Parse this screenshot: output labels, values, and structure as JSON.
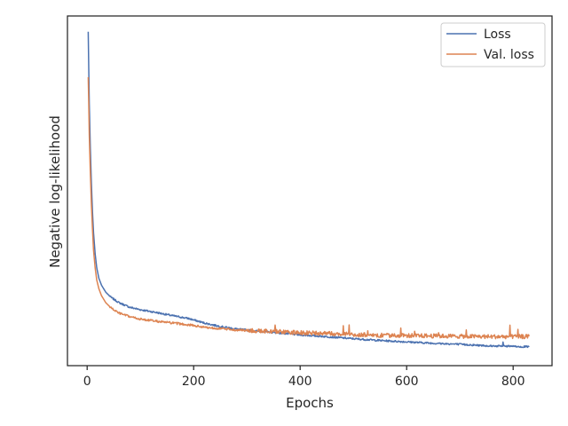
{
  "chart_data": {
    "type": "line",
    "xlabel": "Epochs",
    "ylabel": "Negative log-likelihood",
    "xlim": [
      -37,
      873
    ],
    "ylim": [
      0,
      1
    ],
    "xticks": [
      0,
      200,
      400,
      600,
      800
    ],
    "yticks_shown": false,
    "grid": false,
    "legend": "top-right",
    "series": [
      {
        "name": "Loss",
        "color": "#4c72b0",
        "points": [
          [
            2,
            0.955
          ],
          [
            3,
            0.85
          ],
          [
            4,
            0.75
          ],
          [
            6,
            0.62
          ],
          [
            8,
            0.52
          ],
          [
            10,
            0.44
          ],
          [
            12,
            0.38
          ],
          [
            15,
            0.32
          ],
          [
            18,
            0.28
          ],
          [
            22,
            0.25
          ],
          [
            27,
            0.23
          ],
          [
            35,
            0.21
          ],
          [
            45,
            0.195
          ],
          [
            60,
            0.18
          ],
          [
            80,
            0.167
          ],
          [
            100,
            0.16
          ],
          [
            130,
            0.152
          ],
          [
            160,
            0.143
          ],
          [
            190,
            0.135
          ],
          [
            220,
            0.122
          ],
          [
            250,
            0.112
          ],
          [
            280,
            0.105
          ],
          [
            310,
            0.1
          ],
          [
            350,
            0.095
          ],
          [
            400,
            0.088
          ],
          [
            450,
            0.083
          ],
          [
            500,
            0.077
          ],
          [
            550,
            0.072
          ],
          [
            600,
            0.068
          ],
          [
            650,
            0.064
          ],
          [
            700,
            0.061
          ],
          [
            750,
            0.057
          ],
          [
            800,
            0.055
          ],
          [
            830,
            0.054
          ]
        ]
      },
      {
        "name": "Val. loss",
        "color": "#dd8452",
        "points": [
          [
            2,
            0.825
          ],
          [
            3,
            0.75
          ],
          [
            4,
            0.66
          ],
          [
            6,
            0.55
          ],
          [
            8,
            0.46
          ],
          [
            10,
            0.39
          ],
          [
            12,
            0.33
          ],
          [
            15,
            0.28
          ],
          [
            18,
            0.245
          ],
          [
            22,
            0.22
          ],
          [
            27,
            0.2
          ],
          [
            35,
            0.18
          ],
          [
            45,
            0.165
          ],
          [
            60,
            0.15
          ],
          [
            80,
            0.14
          ],
          [
            100,
            0.133
          ],
          [
            130,
            0.127
          ],
          [
            160,
            0.122
          ],
          [
            190,
            0.117
          ],
          [
            220,
            0.11
          ],
          [
            250,
            0.106
          ],
          [
            280,
            0.102
          ],
          [
            310,
            0.1
          ],
          [
            350,
            0.098
          ],
          [
            400,
            0.094
          ],
          [
            450,
            0.092
          ],
          [
            500,
            0.089
          ],
          [
            550,
            0.087
          ],
          [
            600,
            0.086
          ],
          [
            650,
            0.085
          ],
          [
            700,
            0.084
          ],
          [
            750,
            0.083
          ],
          [
            800,
            0.083
          ],
          [
            830,
            0.083
          ]
        ]
      }
    ]
  }
}
